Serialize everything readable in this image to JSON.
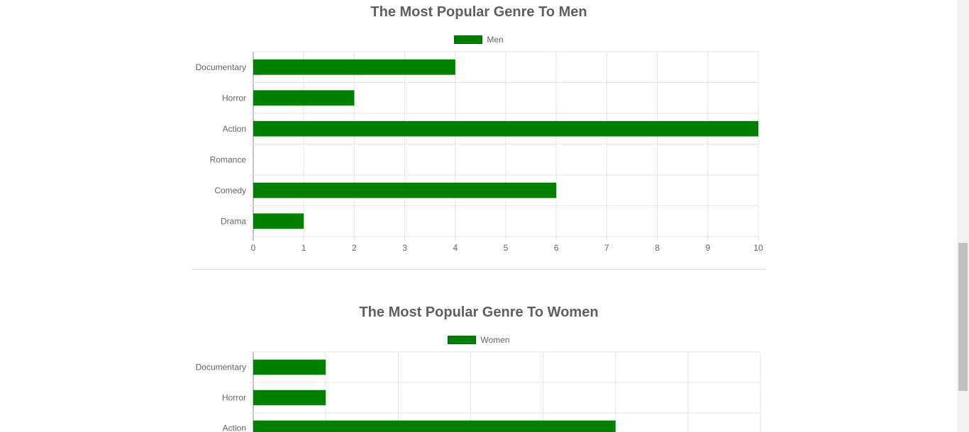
{
  "charts": [
    {
      "title": "The Most Popular Genre To Men",
      "legend_label": "Men",
      "bar_color": "#008000"
    },
    {
      "title": "The Most Popular Genre To Women",
      "legend_label": "Women",
      "bar_color": "#008000"
    }
  ],
  "chart_data": [
    {
      "type": "bar",
      "orientation": "horizontal",
      "title": "The Most Popular Genre To Men",
      "categories": [
        "Documentary",
        "Horror",
        "Action",
        "Romance",
        "Comedy",
        "Drama"
      ],
      "series": [
        {
          "name": "Men",
          "values": [
            4,
            2,
            10,
            0,
            6,
            1
          ]
        }
      ],
      "x_ticks": [
        "0",
        "1",
        "2",
        "3",
        "4",
        "5",
        "6",
        "7",
        "8",
        "9",
        "10"
      ],
      "xlim": [
        0,
        10
      ],
      "grid": true,
      "legend": "top-center"
    },
    {
      "type": "bar",
      "orientation": "horizontal",
      "title": "The Most Popular Genre To Women",
      "categories": [
        "Documentary",
        "Horror",
        "Action"
      ],
      "series": [
        {
          "name": "Women",
          "values": [
            1,
            1,
            5
          ]
        }
      ],
      "xlim": [
        0,
        7
      ],
      "grid": true,
      "legend": "top-center"
    }
  ]
}
